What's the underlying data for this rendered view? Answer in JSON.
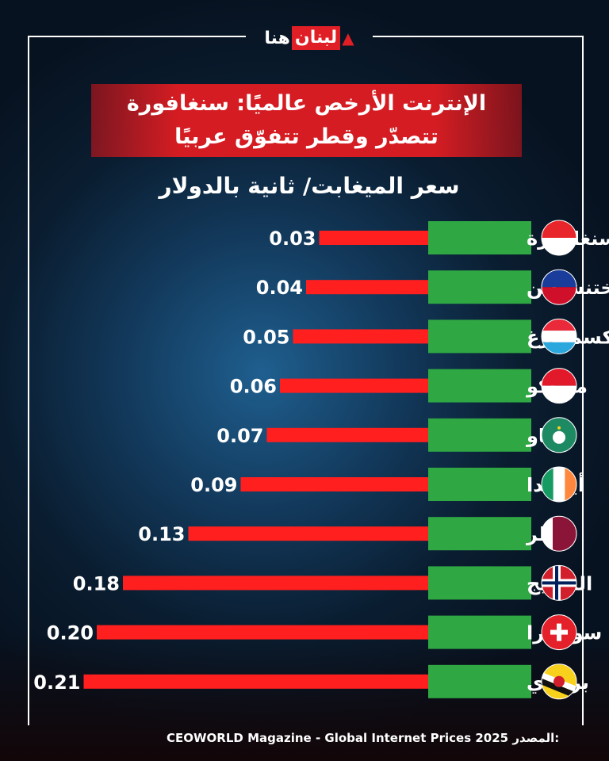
{
  "brand": {
    "logo_text_black": "هنا",
    "logo_text_red": "لبنان"
  },
  "title_line1": "الإنترنت الأرخص عالميًا: سنغافورة",
  "title_line2": "تتصدّر وقطر تتفوّق عربيًا",
  "source": {
    "label": "المصدر:",
    "text": "CEOWORLD Magazine - Global Internet Prices 2025"
  },
  "colors": {
    "bar": "#ff1f1f",
    "label_bg": "#2fa843",
    "title_bg": "#d41c22"
  },
  "chart_data": {
    "type": "bar",
    "orientation": "horizontal",
    "ylabel": "سعر الميغابت/ ثانية بالدولار",
    "categories": [
      "سنغافورة",
      "ليختنشتاين",
      "لوكسمبورغ",
      "موناكو",
      "ماكاو",
      "أيرلندا",
      "قطر",
      "النرويج",
      "سويسرا",
      "بروناي"
    ],
    "flags": [
      "singapore-flag",
      "liechtenstein-flag",
      "luxembourg-flag",
      "monaco-flag",
      "macau-flag",
      "ireland-flag",
      "qatar-flag",
      "norway-flag",
      "switzerland-flag",
      "brunei-flag"
    ],
    "values": [
      0.03,
      0.04,
      0.05,
      0.06,
      0.07,
      0.09,
      0.13,
      0.18,
      0.2,
      0.21
    ],
    "value_labels": [
      "0.03",
      "0.04",
      "0.05",
      "0.06",
      "0.07",
      "0.09",
      "0.13",
      "0.18",
      "0.20",
      "0.21"
    ]
  }
}
